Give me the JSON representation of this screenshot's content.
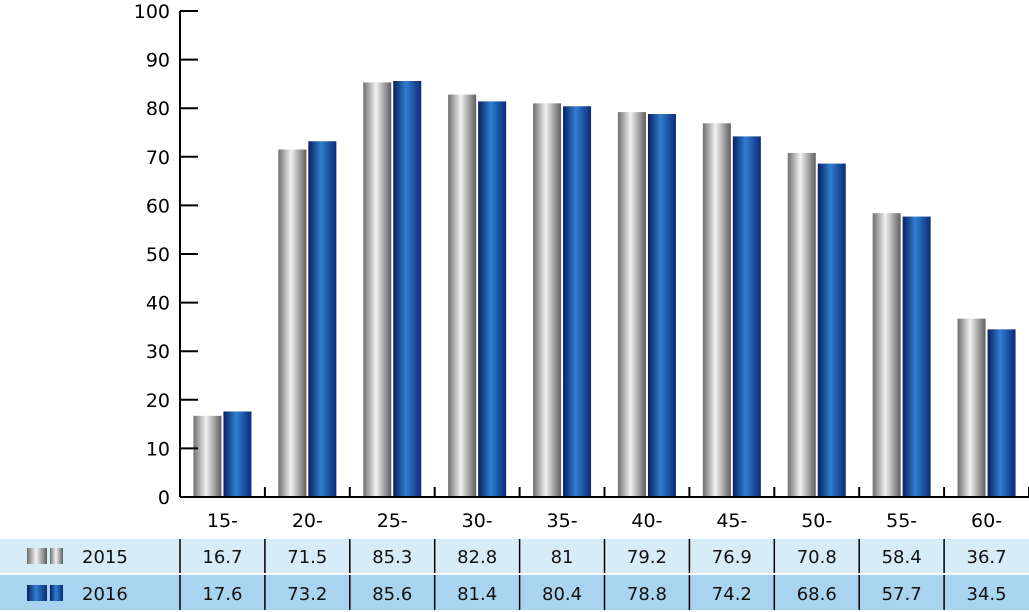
{
  "chart_data": {
    "type": "bar",
    "categories": [
      "15-",
      "20-",
      "25-",
      "30-",
      "35-",
      "40-",
      "45-",
      "50-",
      "55-",
      "60-"
    ],
    "series": [
      {
        "name": "2015",
        "values": [
          16.7,
          71.5,
          85.3,
          82.8,
          81,
          79.2,
          76.9,
          70.8,
          58.4,
          36.7
        ],
        "color": "#9a9a9a"
      },
      {
        "name": "2016",
        "values": [
          17.6,
          73.2,
          85.6,
          81.4,
          80.4,
          78.8,
          74.2,
          68.6,
          57.7,
          34.5
        ],
        "color": "#1a4fa0"
      }
    ],
    "ylim": [
      0,
      100
    ],
    "yticks": [
      "0",
      "10",
      "20",
      "30",
      "40",
      "50",
      "60",
      "70",
      "80",
      "90",
      "100"
    ],
    "table_values": [
      [
        "16.7",
        "71.5",
        "85.3",
        "82.8",
        "81",
        "79.2",
        "76.9",
        "70.8",
        "58.4",
        "36.7"
      ],
      [
        "17.6",
        "73.2",
        "85.6",
        "81.4",
        "80.4",
        "78.8",
        "74.2",
        "68.6",
        "57.7",
        "34.5"
      ]
    ],
    "grid": false,
    "legend": "data table below chart"
  }
}
